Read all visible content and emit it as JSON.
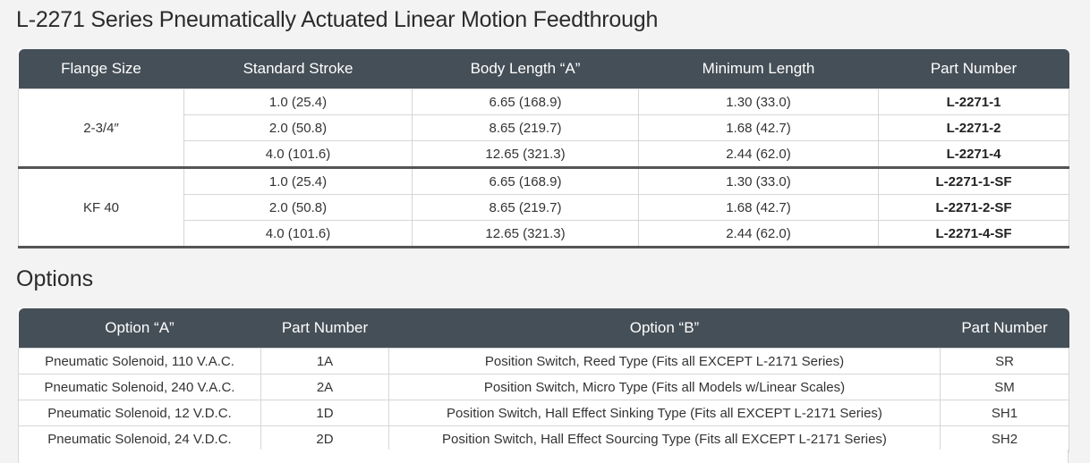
{
  "title": "L-2271 Series Pneumatically Actuated Linear Motion Feedthrough",
  "spec_table": {
    "headers": [
      "Flange Size",
      "Standard Stroke",
      "Body Length “A”",
      "Minimum Length",
      "Part Number"
    ],
    "groups": [
      {
        "flange": "2-3/4″",
        "rows": [
          [
            "1.0  (25.4)",
            "6.65  (168.9)",
            "1.30  (33.0)",
            "L-2271-1"
          ],
          [
            "2.0  (50.8)",
            "8.65  (219.7)",
            "1.68  (42.7)",
            "L-2271-2"
          ],
          [
            "4.0  (101.6)",
            "12.65  (321.3)",
            "2.44  (62.0)",
            "L-2271-4"
          ]
        ]
      },
      {
        "flange": "KF 40",
        "rows": [
          [
            "1.0  (25.4)",
            "6.65  (168.9)",
            "1.30  (33.0)",
            "L-2271-1-SF"
          ],
          [
            "2.0  (50.8)",
            "8.65  (219.7)",
            "1.68  (42.7)",
            "L-2271-2-SF"
          ],
          [
            "4.0  (101.6)",
            "12.65  (321.3)",
            "2.44  (62.0)",
            "L-2271-4-SF"
          ]
        ]
      }
    ]
  },
  "options_title": "Options",
  "options_table": {
    "headers": [
      "Option “A”",
      "Part Number",
      "Option “B”",
      "Part Number"
    ],
    "rows": [
      [
        "Pneumatic Solenoid, 110 V.A.C.",
        "1A",
        "Position Switch, Reed Type (Fits all EXCEPT L-2171 Series)",
        "SR"
      ],
      [
        "Pneumatic Solenoid, 240 V.A.C.",
        "2A",
        "Position Switch, Micro Type (Fits all Models w/Linear Scales)",
        "SM"
      ],
      [
        "Pneumatic Solenoid, 12 V.D.C.",
        "1D",
        "Position Switch, Hall Effect Sinking Type (Fits all EXCEPT L-2171 Series)",
        "SH1"
      ],
      [
        "Pneumatic Solenoid, 24 V.D.C.",
        "2D",
        "Position Switch, Hall Effect Sourcing Type (Fits all EXCEPT L-2171 Series)",
        "SH2"
      ]
    ]
  }
}
